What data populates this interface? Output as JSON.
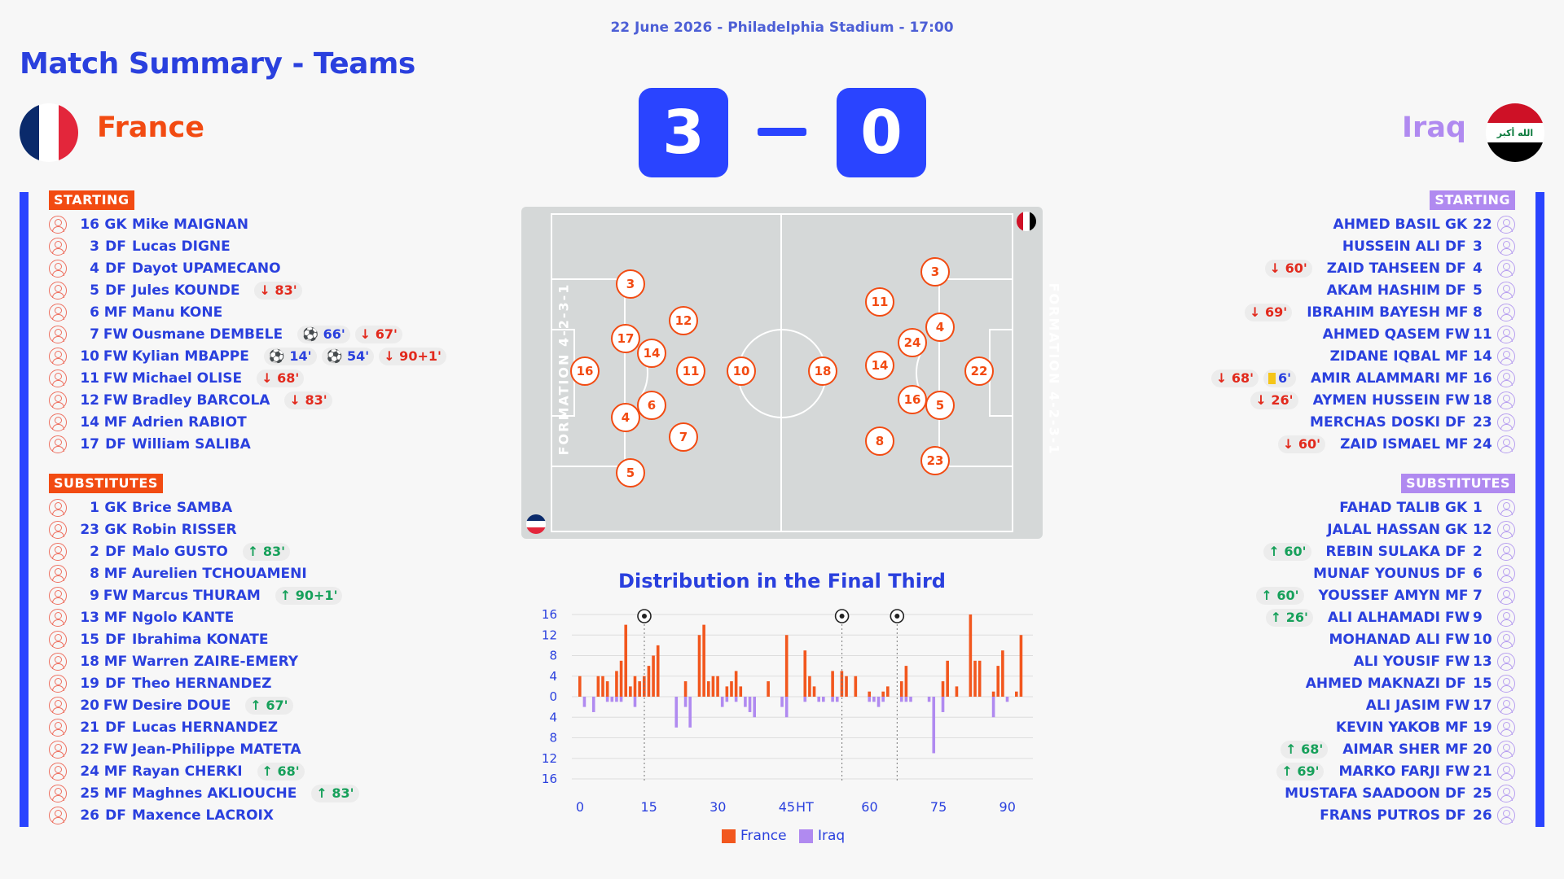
{
  "header": {
    "match_info": "22 June 2026 - Philadelphia Stadium - 17:00",
    "title": "Match Summary - Teams"
  },
  "home": {
    "name": "France",
    "score": "3",
    "flag_colors": [
      "#0a2a6b",
      "#ffffff",
      "#e3263b"
    ],
    "starting_label": "STARTING",
    "subs_label": "SUBSTITUTES",
    "formation": "FORMATION 4-2-3-1",
    "starting": [
      {
        "num": "16",
        "pos": "GK",
        "name": "Mike MAIGNAN",
        "events": []
      },
      {
        "num": "3",
        "pos": "DF",
        "name": "Lucas DIGNE",
        "events": []
      },
      {
        "num": "4",
        "pos": "DF",
        "name": "Dayot UPAMECANO",
        "events": []
      },
      {
        "num": "5",
        "pos": "DF",
        "name": "Jules KOUNDE",
        "events": [
          {
            "type": "out",
            "text": "↓ 83'"
          }
        ]
      },
      {
        "num": "6",
        "pos": "MF",
        "name": "Manu KONE",
        "events": []
      },
      {
        "num": "7",
        "pos": "FW",
        "name": "Ousmane DEMBELE",
        "events": [
          {
            "type": "goal",
            "text": "⚽ 66'"
          },
          {
            "type": "out",
            "text": "↓ 67'"
          }
        ]
      },
      {
        "num": "10",
        "pos": "FW",
        "name": "Kylian MBAPPE",
        "events": [
          {
            "type": "goal",
            "text": "⚽ 14'"
          },
          {
            "type": "goal",
            "text": "⚽ 54'"
          },
          {
            "type": "out",
            "text": "↓ 90+1'"
          }
        ]
      },
      {
        "num": "11",
        "pos": "FW",
        "name": "Michael OLISE",
        "events": [
          {
            "type": "out",
            "text": "↓ 68'"
          }
        ]
      },
      {
        "num": "12",
        "pos": "FW",
        "name": "Bradley BARCOLA",
        "events": [
          {
            "type": "out",
            "text": "↓ 83'"
          }
        ]
      },
      {
        "num": "14",
        "pos": "MF",
        "name": "Adrien RABIOT",
        "events": []
      },
      {
        "num": "17",
        "pos": "DF",
        "name": "William SALIBA",
        "events": []
      }
    ],
    "subs": [
      {
        "num": "1",
        "pos": "GK",
        "name": "Brice SAMBA",
        "events": []
      },
      {
        "num": "23",
        "pos": "GK",
        "name": "Robin RISSER",
        "events": []
      },
      {
        "num": "2",
        "pos": "DF",
        "name": "Malo GUSTO",
        "events": [
          {
            "type": "in",
            "text": "↑ 83'"
          }
        ]
      },
      {
        "num": "8",
        "pos": "MF",
        "name": "Aurelien TCHOUAMENI",
        "events": []
      },
      {
        "num": "9",
        "pos": "FW",
        "name": "Marcus THURAM",
        "events": [
          {
            "type": "in",
            "text": "↑ 90+1'"
          }
        ]
      },
      {
        "num": "13",
        "pos": "MF",
        "name": "Ngolo KANTE",
        "events": []
      },
      {
        "num": "15",
        "pos": "DF",
        "name": "Ibrahima KONATE",
        "events": []
      },
      {
        "num": "18",
        "pos": "MF",
        "name": "Warren ZAIRE-EMERY",
        "events": []
      },
      {
        "num": "19",
        "pos": "DF",
        "name": "Theo HERNANDEZ",
        "events": []
      },
      {
        "num": "20",
        "pos": "FW",
        "name": "Desire DOUE",
        "events": [
          {
            "type": "in",
            "text": "↑ 67'"
          }
        ]
      },
      {
        "num": "21",
        "pos": "DF",
        "name": "Lucas HERNANDEZ",
        "events": []
      },
      {
        "num": "22",
        "pos": "FW",
        "name": "Jean-Philippe MATETA",
        "events": []
      },
      {
        "num": "24",
        "pos": "MF",
        "name": "Rayan CHERKI",
        "events": [
          {
            "type": "in",
            "text": "↑ 68'"
          }
        ]
      },
      {
        "num": "25",
        "pos": "MF",
        "name": "Maghnes AKLIOUCHE",
        "events": [
          {
            "type": "in",
            "text": "↑ 83'"
          }
        ]
      },
      {
        "num": "26",
        "pos": "DF",
        "name": "Maxence LACROIX",
        "events": []
      }
    ],
    "pitch_numbers": [
      "16",
      "3",
      "17",
      "4",
      "5",
      "12",
      "14",
      "6",
      "11",
      "7",
      "10"
    ]
  },
  "away": {
    "name": "Iraq",
    "score": "0",
    "flag_colors": [
      "#ce1126",
      "#ffffff",
      "#000000"
    ],
    "flag_script": "الله أكبر",
    "starting_label": "STARTING",
    "subs_label": "SUBSTITUTES",
    "formation": "FORMATION 4-2-3-1",
    "starting": [
      {
        "num": "22",
        "pos": "GK",
        "name": "AHMED BASIL",
        "events": []
      },
      {
        "num": "3",
        "pos": "DF",
        "name": "HUSSEIN ALI",
        "events": []
      },
      {
        "num": "4",
        "pos": "DF",
        "name": "ZAID TAHSEEN",
        "events": [
          {
            "type": "out",
            "text": "↓ 60'"
          }
        ]
      },
      {
        "num": "5",
        "pos": "DF",
        "name": "AKAM HASHIM",
        "events": []
      },
      {
        "num": "8",
        "pos": "MF",
        "name": "IBRAHIM BAYESH",
        "events": [
          {
            "type": "out",
            "text": "↓ 69'"
          }
        ]
      },
      {
        "num": "11",
        "pos": "FW",
        "name": "AHMED QASEM",
        "events": []
      },
      {
        "num": "14",
        "pos": "MF",
        "name": "ZIDANE IQBAL",
        "events": []
      },
      {
        "num": "16",
        "pos": "MF",
        "name": "AMIR ALAMMARI",
        "events": [
          {
            "type": "card",
            "text": "6'"
          },
          {
            "type": "out",
            "text": "↓ 68'"
          }
        ]
      },
      {
        "num": "18",
        "pos": "FW",
        "name": "AYMEN HUSSEIN",
        "events": [
          {
            "type": "out",
            "text": "↓ 26'"
          }
        ]
      },
      {
        "num": "23",
        "pos": "DF",
        "name": "MERCHAS DOSKI",
        "events": []
      },
      {
        "num": "24",
        "pos": "MF",
        "name": "ZAID ISMAEL",
        "events": [
          {
            "type": "out",
            "text": "↓ 60'"
          }
        ]
      }
    ],
    "subs": [
      {
        "num": "1",
        "pos": "GK",
        "name": "FAHAD TALIB",
        "events": []
      },
      {
        "num": "12",
        "pos": "GK",
        "name": "JALAL HASSAN",
        "events": []
      },
      {
        "num": "2",
        "pos": "DF",
        "name": "REBIN SULAKA",
        "events": [
          {
            "type": "in",
            "text": "↑ 60'"
          }
        ]
      },
      {
        "num": "6",
        "pos": "DF",
        "name": "MUNAF YOUNUS",
        "events": []
      },
      {
        "num": "7",
        "pos": "MF",
        "name": "YOUSSEF AMYN",
        "events": [
          {
            "type": "in",
            "text": "↑ 60'"
          }
        ]
      },
      {
        "num": "9",
        "pos": "FW",
        "name": "ALI ALHAMADI",
        "events": [
          {
            "type": "in",
            "text": "↑ 26'"
          }
        ]
      },
      {
        "num": "10",
        "pos": "FW",
        "name": "MOHANAD ALI",
        "events": []
      },
      {
        "num": "13",
        "pos": "FW",
        "name": "ALI YOUSIF",
        "events": []
      },
      {
        "num": "15",
        "pos": "DF",
        "name": "AHMED MAKNAZI",
        "events": []
      },
      {
        "num": "17",
        "pos": "FW",
        "name": "ALI JASIM",
        "events": []
      },
      {
        "num": "19",
        "pos": "MF",
        "name": "KEVIN YAKOB",
        "events": []
      },
      {
        "num": "20",
        "pos": "MF",
        "name": "AIMAR SHER",
        "events": [
          {
            "type": "in",
            "text": "↑ 68'"
          }
        ]
      },
      {
        "num": "21",
        "pos": "FW",
        "name": "MARKO FARJI",
        "events": [
          {
            "type": "in",
            "text": "↑ 69'"
          }
        ]
      },
      {
        "num": "25",
        "pos": "DF",
        "name": "MUSTAFA SAADOON",
        "events": []
      },
      {
        "num": "26",
        "pos": "DF",
        "name": "FRANS PUTROS",
        "events": []
      }
    ],
    "pitch_numbers": [
      "22",
      "3",
      "4",
      "5",
      "23",
      "11",
      "24",
      "16",
      "14",
      "8",
      "18"
    ]
  },
  "chart_data": {
    "type": "bar",
    "title": "Distribution in the Final Third",
    "x_ticks": [
      "0",
      "15",
      "30",
      "45",
      "HT",
      "60",
      "75",
      "90"
    ],
    "y_ticks": [
      "16",
      "12",
      "8",
      "4",
      "0",
      "4",
      "8",
      "12",
      "16"
    ],
    "ylim": [
      -16,
      16
    ],
    "goal_minutes": [
      14,
      54,
      66
    ],
    "goal_icon": "football-icon",
    "series": [
      {
        "name": "France",
        "color": "#f2571e",
        "values": [
          4,
          0,
          0,
          0,
          4,
          4,
          3,
          0,
          5,
          7,
          14,
          2,
          4,
          3,
          4,
          6,
          8,
          10,
          0,
          0,
          0,
          0,
          0,
          3,
          0,
          0,
          12,
          14,
          3,
          4,
          4,
          0,
          2,
          3,
          5,
          2,
          0,
          0,
          0,
          0,
          0,
          3,
          0,
          0,
          0,
          12,
          9,
          4,
          2,
          0,
          0,
          0,
          5,
          0,
          5,
          4,
          0,
          4,
          0,
          0,
          1,
          0,
          0,
          1,
          2,
          0,
          0,
          3,
          6,
          0,
          0,
          0,
          0,
          0,
          0,
          0,
          3,
          7,
          0,
          2,
          0,
          0,
          16,
          7,
          7,
          0,
          0,
          1,
          6,
          9,
          0,
          0,
          1,
          12
        ]
      },
      {
        "name": "Iraq",
        "color": "#b08af0",
        "values": [
          0,
          -2,
          0,
          -3,
          0,
          0,
          -1,
          -1,
          -1,
          -1,
          0,
          0,
          -2,
          0,
          0,
          0,
          0,
          0,
          0,
          0,
          0,
          -6,
          0,
          -2,
          -6,
          0,
          0,
          0,
          0,
          0,
          0,
          -2,
          -1,
          0,
          -1,
          0,
          -2,
          -3,
          -4,
          0,
          0,
          0,
          0,
          0,
          -2,
          -4,
          -1,
          0,
          0,
          -1,
          -1,
          0,
          -1,
          -1,
          0,
          0,
          0,
          0,
          0,
          0,
          -1,
          -1,
          -2,
          -1,
          0,
          0,
          0,
          -1,
          -1,
          -1,
          0,
          0,
          0,
          -1,
          -11,
          0,
          -3,
          0,
          0,
          0,
          0,
          0,
          0,
          0,
          0,
          0,
          0,
          -4,
          0,
          0,
          -1,
          0,
          0,
          0
        ]
      }
    ],
    "legend": [
      "France",
      "Iraq"
    ]
  }
}
